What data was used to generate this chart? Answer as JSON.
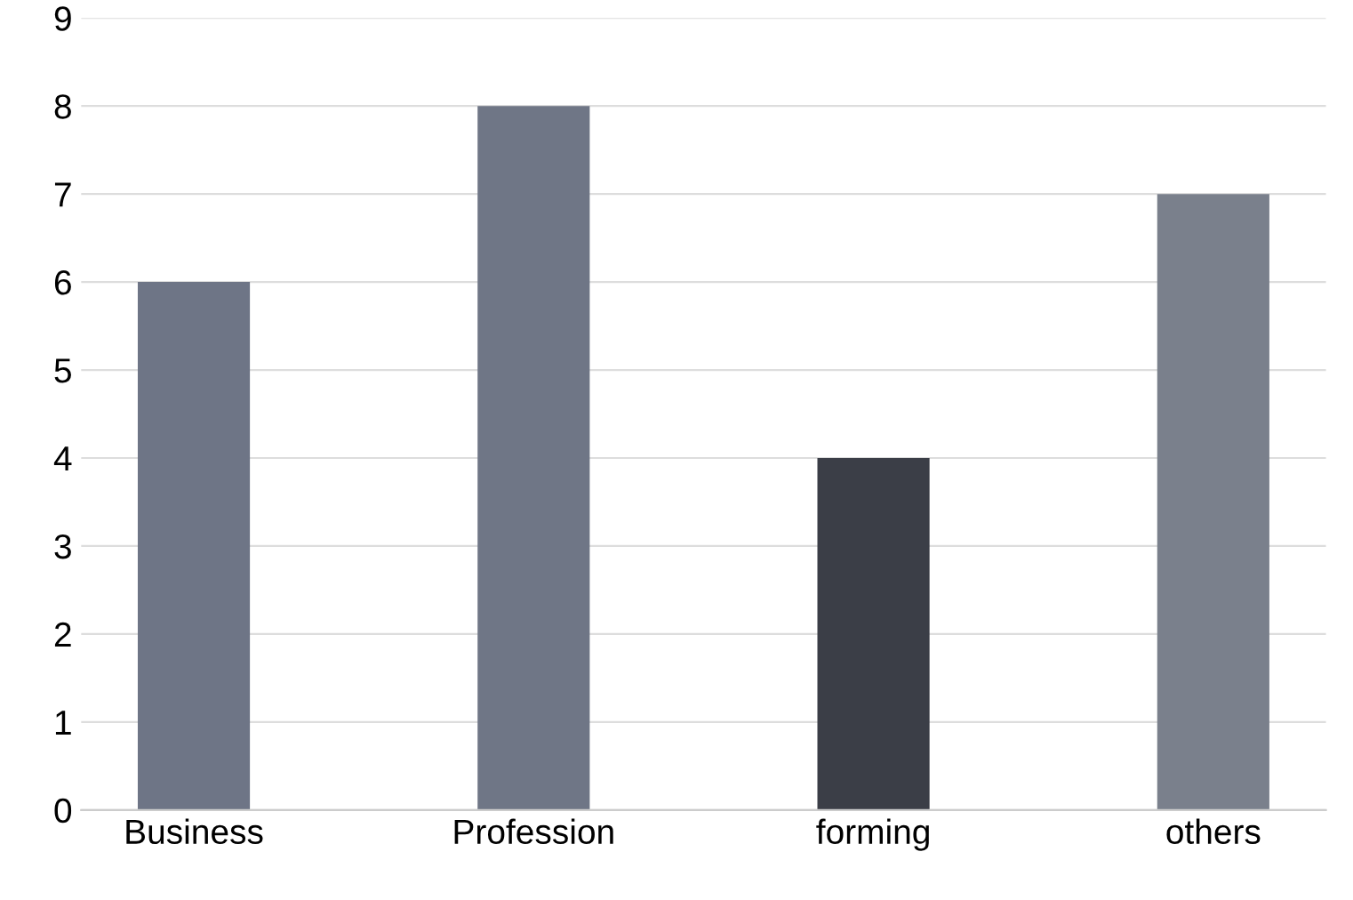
{
  "chart_data": {
    "type": "bar",
    "categories": [
      "Business",
      "Profession",
      "forming",
      "others"
    ],
    "values": [
      6,
      8,
      4,
      7
    ],
    "colors": [
      "#6e7586",
      "#6f7686",
      "#3b3e47",
      "#7a808c"
    ],
    "ylim": [
      0,
      9
    ],
    "yticks": [
      0,
      1,
      2,
      3,
      4,
      5,
      6,
      7,
      8,
      9
    ],
    "grid": "y"
  }
}
